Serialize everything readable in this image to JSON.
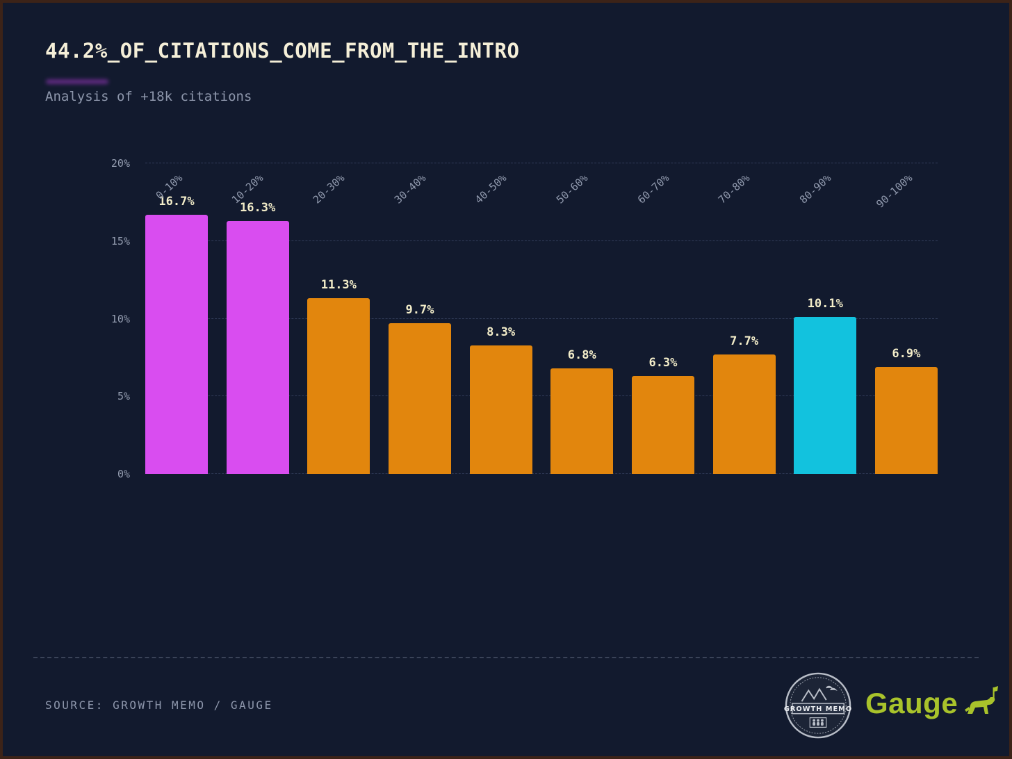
{
  "page": {
    "title": "44.2%_OF_CITATIONS_COME_FROM_THE_INTRO",
    "subtitle": "Analysis of +18k citations",
    "source_label": "SOURCE: GROWTH MEMO / GAUGE"
  },
  "branding": {
    "growth_memo_badge": "GROWTH MEMO",
    "gauge_wordmark": "Gauge"
  },
  "colors": {
    "background": "#121a2e",
    "magenta": "#d94df0",
    "orange": "#e2860d",
    "cyan": "#12c2de",
    "value_label": "#f3edc9",
    "muted_text": "#8d96ab",
    "gauge_green": "#a9c32b"
  },
  "chart_data": {
    "type": "bar",
    "title": "44.2%_OF_CITATIONS_COME_FROM_THE_INTRO",
    "subtitle": "Analysis of +18k citations",
    "categories": [
      "0-10%",
      "10-20%",
      "20-30%",
      "30-40%",
      "40-50%",
      "50-60%",
      "60-70%",
      "70-80%",
      "80-90%",
      "90-100%"
    ],
    "values": [
      16.7,
      16.3,
      11.3,
      9.7,
      8.3,
      6.8,
      6.3,
      7.7,
      10.1,
      6.9
    ],
    "value_labels": [
      "16.7%",
      "16.3%",
      "11.3%",
      "9.7%",
      "8.3%",
      "6.8%",
      "6.3%",
      "7.7%",
      "10.1%",
      "6.9%"
    ],
    "bar_colors": [
      "#d94df0",
      "#d94df0",
      "#e2860d",
      "#e2860d",
      "#e2860d",
      "#e2860d",
      "#e2860d",
      "#e2860d",
      "#12c2de",
      "#e2860d"
    ],
    "xlabel": "",
    "ylabel": "",
    "ylim": [
      0,
      20
    ],
    "yticks": [
      "0%",
      "5%",
      "10%",
      "15%",
      "20%"
    ],
    "grid": true,
    "grid_style": "dashed-horizontal",
    "legend": false
  }
}
